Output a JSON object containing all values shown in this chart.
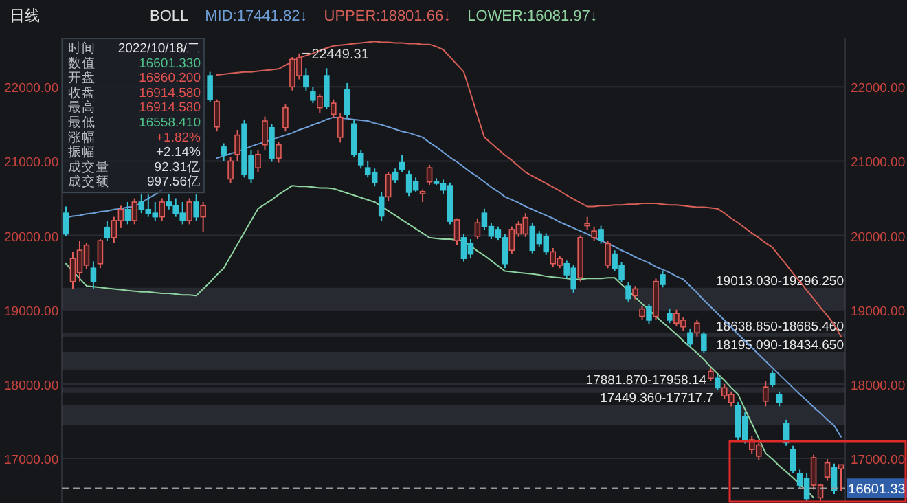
{
  "chart_data": {
    "type": "candlestick",
    "title": "日线",
    "legend_title": "BOLL",
    "legend": "top",
    "grid": "y",
    "categories": [
      null,
      null,
      null,
      null,
      null,
      null,
      null,
      null,
      null,
      null,
      null,
      null,
      null,
      null,
      null,
      null,
      null,
      null,
      null,
      null,
      null,
      null,
      null,
      null,
      null,
      null,
      null,
      null,
      null,
      null,
      null,
      null,
      null,
      null,
      null,
      null,
      null,
      null,
      null,
      null,
      null,
      null,
      null,
      null,
      null,
      null,
      null,
      null,
      null,
      null,
      null,
      null,
      null,
      null,
      null,
      null,
      null,
      null,
      null,
      null,
      null,
      null,
      null,
      null,
      null,
      null,
      null,
      null,
      null,
      null,
      null,
      null,
      null,
      null,
      null,
      null,
      null,
      null,
      null,
      null,
      null,
      null,
      null,
      null,
      null,
      null,
      null,
      null,
      null,
      null,
      null,
      null,
      null,
      null,
      null,
      null,
      null,
      null,
      null,
      null,
      null,
      null,
      null,
      null,
      null,
      null,
      null,
      null,
      null,
      null,
      null,
      null,
      null,
      null
    ],
    "ohlc": [
      [
        20300,
        20390,
        19990,
        20020
      ],
      [
        19380,
        19780,
        19280,
        19690
      ],
      [
        19500,
        19930,
        19380,
        19800
      ],
      [
        19600,
        19900,
        19550,
        19870
      ],
      [
        19560,
        19650,
        19280,
        19380
      ],
      [
        19620,
        19950,
        19560,
        19930
      ],
      [
        20110,
        20200,
        19930,
        19970
      ],
      [
        19970,
        20250,
        19900,
        20200
      ],
      [
        20200,
        20400,
        20100,
        20350
      ],
      [
        20350,
        20450,
        20150,
        20200
      ],
      [
        20200,
        20500,
        20150,
        20450
      ],
      [
        20450,
        20560,
        20300,
        20350
      ],
      [
        20350,
        20550,
        20250,
        20300
      ],
      [
        20300,
        20450,
        20200,
        20250
      ],
      [
        20250,
        20500,
        20200,
        20450
      ],
      [
        20450,
        20560,
        20350,
        20400
      ],
      [
        20400,
        20500,
        20250,
        20300
      ],
      [
        20300,
        20450,
        20150,
        20200
      ],
      [
        20200,
        20500,
        20150,
        20450
      ],
      [
        20450,
        20550,
        20200,
        20250
      ],
      [
        20250,
        20450,
        20050,
        20400
      ],
      [
        22150,
        22200,
        21800,
        21830
      ],
      [
        21460,
        21830,
        21400,
        21800
      ],
      [
        21190,
        21240,
        21000,
        21080
      ],
      [
        20760,
        21050,
        20700,
        21000
      ],
      [
        21090,
        21420,
        21000,
        21350
      ],
      [
        21500,
        21560,
        20780,
        20820
      ],
      [
        21080,
        21150,
        20700,
        20760
      ],
      [
        20910,
        21150,
        20850,
        21090
      ],
      [
        21220,
        21600,
        21150,
        21540
      ],
      [
        21450,
        21500,
        20990,
        21040
      ],
      [
        21040,
        21260,
        20980,
        21220
      ],
      [
        21450,
        21760,
        21400,
        21720
      ],
      [
        22000,
        22400,
        21950,
        22370
      ],
      [
        22150,
        22449.31,
        22100,
        22390
      ],
      [
        22150,
        22250,
        21950,
        22000
      ],
      [
        21930,
        22000,
        21780,
        21820
      ],
      [
        21720,
        21900,
        21650,
        21870
      ],
      [
        22150,
        22250,
        21700,
        21740
      ],
      [
        21630,
        21830,
        21580,
        21780
      ],
      [
        21320,
        21650,
        21250,
        21590
      ],
      [
        21960,
        22050,
        21580,
        21630
      ],
      [
        21500,
        21560,
        21050,
        21090
      ],
      [
        21100,
        21150,
        20900,
        20950
      ],
      [
        20910,
        21000,
        20780,
        20820
      ],
      [
        20850,
        20900,
        20660,
        20710
      ],
      [
        20520,
        20580,
        20200,
        20260
      ],
      [
        20520,
        20850,
        20460,
        20820
      ],
      [
        20850,
        20900,
        20700,
        20750
      ],
      [
        20980,
        21080,
        20850,
        20890
      ],
      [
        20820,
        20870,
        20530,
        20580
      ],
      [
        20720,
        20780,
        20580,
        20610
      ],
      [
        20560,
        20620,
        20450,
        20590
      ],
      [
        20720,
        20950,
        20680,
        20910
      ],
      [
        20720,
        20770,
        20680,
        20700
      ],
      [
        20700,
        20750,
        20560,
        20610
      ],
      [
        20670,
        20710,
        20150,
        20190
      ],
      [
        19930,
        20230,
        19870,
        20210
      ],
      [
        19970,
        20020,
        19650,
        19690
      ],
      [
        19890,
        19950,
        19700,
        19750
      ],
      [
        19990,
        20230,
        19950,
        20170
      ],
      [
        20300,
        20360,
        20070,
        20120
      ],
      [
        20120,
        20170,
        19950,
        19990
      ],
      [
        20080,
        20120,
        19940,
        19970
      ],
      [
        19970,
        20020,
        19560,
        19620
      ],
      [
        19800,
        20120,
        19750,
        20080
      ],
      [
        20020,
        20200,
        19980,
        20150
      ],
      [
        20020,
        20300,
        19980,
        20240
      ],
      [
        20120,
        20170,
        19760,
        19800
      ],
      [
        20020,
        20060,
        19850,
        19890
      ],
      [
        19990,
        20030,
        19740,
        19780
      ],
      [
        19620,
        19830,
        19580,
        19780
      ],
      [
        19600,
        19720,
        19560,
        19690
      ],
      [
        19620,
        19660,
        19420,
        19470
      ],
      [
        19560,
        19600,
        19230,
        19280
      ],
      [
        19430,
        20000,
        19380,
        19970
      ],
      [
        20130,
        20250,
        20080,
        20160
      ],
      [
        19970,
        20120,
        19930,
        20060
      ],
      [
        20080,
        20130,
        19890,
        19930
      ],
      [
        19600,
        19930,
        19560,
        19890
      ],
      [
        19750,
        19800,
        19520,
        19560
      ],
      [
        19600,
        19640,
        19370,
        19410
      ],
      [
        19320,
        19370,
        19110,
        19150
      ],
      [
        19190,
        19320,
        19140,
        19280
      ],
      [
        18910,
        19050,
        18870,
        19010
      ],
      [
        19040,
        19080,
        18810,
        18860
      ],
      [
        18910,
        19420,
        18860,
        19380
      ],
      [
        19470,
        19520,
        19300,
        19340
      ],
      [
        18950,
        19010,
        18820,
        18860
      ],
      [
        18820,
        19000,
        18780,
        18950
      ],
      [
        18770,
        18900,
        18720,
        18860
      ],
      [
        18690,
        18740,
        18500,
        18540
      ],
      [
        18690,
        18870,
        18640,
        18820
      ],
      [
        18670,
        18700,
        18420,
        18450
      ],
      [
        18080,
        18220,
        18040,
        18170
      ],
      [
        18080,
        18130,
        17920,
        17950
      ],
      [
        17840,
        18000,
        17800,
        17950
      ],
      [
        17750,
        17900,
        17700,
        17860
      ],
      [
        17710,
        17760,
        17240,
        17290
      ],
      [
        17560,
        17620,
        17200,
        17250
      ],
      [
        17120,
        17300,
        17060,
        17250
      ],
      [
        17030,
        17210,
        16980,
        17180
      ],
      [
        17770,
        18040,
        17700,
        17960
      ],
      [
        18140,
        18180,
        17960,
        17990
      ],
      [
        17860,
        17900,
        17700,
        17750
      ],
      [
        17470,
        17520,
        17170,
        17210
      ],
      [
        17120,
        17170,
        16800,
        16840
      ],
      [
        16790,
        16850,
        16600,
        16640
      ],
      [
        16730,
        16800,
        16420,
        16460
      ],
      [
        16640,
        17050,
        16580,
        17010
      ],
      [
        16470,
        16660,
        16430,
        16640
      ],
      [
        16750,
        16990,
        16700,
        16940
      ],
      [
        16880,
        16930,
        16520,
        16570
      ],
      [
        16860.2,
        16914.58,
        16558.41,
        16914.58
      ]
    ],
    "series": [
      {
        "name": "MID:17441.82↓",
        "type": "line",
        "color": "#6f9fd8",
        "values": [
          20240,
          20260,
          20270,
          20290,
          20300,
          20320,
          20330,
          20350,
          20360,
          20380,
          20390,
          20440,
          20500,
          20550,
          20610,
          null,
          null,
          null,
          null,
          null,
          null,
          null,
          21040,
          21070,
          21100,
          21130,
          21160,
          21200,
          21230,
          21260,
          21290,
          21320,
          21350,
          21380,
          21420,
          21450,
          21490,
          21520,
          21560,
          21590,
          21580,
          21570,
          21560,
          21550,
          21540,
          21510,
          21490,
          21460,
          21430,
          21400,
          21380,
          21350,
          21320,
          21250,
          21190,
          21120,
          21050,
          20990,
          20920,
          20850,
          20790,
          20720,
          20650,
          20590,
          20520,
          20480,
          20440,
          20390,
          20350,
          20310,
          20270,
          20230,
          20180,
          20140,
          20100,
          20060,
          20020,
          19970,
          19930,
          19890,
          19850,
          19800,
          19760,
          19710,
          19670,
          19630,
          19580,
          19540,
          19500,
          19450,
          19410,
          19320,
          19230,
          19130,
          19040,
          18950,
          18860,
          18760,
          18670,
          18580,
          18490,
          18400,
          18310,
          18220,
          18130,
          18040,
          17950,
          17860,
          17780,
          17690,
          17610,
          17520,
          17440,
          17290
        ]
      },
      {
        "name": "UPPER:18801.66↓",
        "type": "line",
        "color": "#d65f58",
        "values": [
          null,
          null,
          null,
          null,
          null,
          null,
          null,
          null,
          null,
          null,
          null,
          null,
          null,
          null,
          null,
          null,
          null,
          null,
          null,
          null,
          null,
          null,
          22160,
          22170,
          22180,
          22190,
          22200,
          22200,
          22210,
          22220,
          22230,
          22240,
          22290,
          22340,
          22390,
          22420,
          22450,
          22490,
          22520,
          22550,
          22560,
          22570,
          22580,
          22590,
          22600,
          22610,
          22600,
          22600,
          22590,
          22590,
          22580,
          22580,
          22570,
          22570,
          22540,
          22500,
          22400,
          22300,
          22200,
          21910,
          21610,
          21320,
          21240,
          21160,
          21080,
          21010,
          20930,
          20850,
          20800,
          20750,
          20700,
          20650,
          20600,
          20540,
          20490,
          20440,
          20390,
          20390,
          20400,
          20400,
          20410,
          20410,
          20420,
          20420,
          20430,
          20430,
          20430,
          20420,
          20410,
          20410,
          20400,
          20390,
          20380,
          20380,
          20370,
          20360,
          20300,
          20230,
          20170,
          20100,
          20030,
          19970,
          19900,
          19840,
          19720,
          19610,
          19490,
          19380,
          19260,
          19150,
          19030,
          18920,
          18800,
          18640
        ]
      },
      {
        "name": "LOWER:16081.97↓",
        "type": "line",
        "color": "#8fd3a0",
        "values": [
          19620,
          19520,
          19420,
          19320,
          19310,
          19300,
          19290,
          19280,
          19270,
          19260,
          19250,
          19240,
          19240,
          19230,
          19220,
          19220,
          19210,
          19200,
          19200,
          19190,
          19280,
          19370,
          19470,
          19560,
          19720,
          19880,
          20040,
          20200,
          20360,
          20420,
          20480,
          20550,
          20610,
          20670,
          20660,
          20660,
          20650,
          20640,
          20640,
          20630,
          20600,
          20570,
          20540,
          20510,
          20480,
          20450,
          20390,
          20330,
          20270,
          20210,
          20150,
          20090,
          20030,
          19970,
          19960,
          19950,
          19950,
          19940,
          19930,
          19860,
          19790,
          19730,
          19660,
          19590,
          19520,
          19510,
          19500,
          19490,
          19480,
          19470,
          19450,
          19440,
          19430,
          19420,
          19410,
          19410,
          19420,
          19420,
          19420,
          19430,
          19430,
          19340,
          19260,
          19170,
          19080,
          19000,
          18910,
          18830,
          18750,
          18670,
          18580,
          18500,
          18420,
          18330,
          18230,
          18140,
          18050,
          17950,
          17860,
          17660,
          17470,
          17270,
          17070,
          16990,
          16900,
          16820,
          16740,
          16650,
          16570,
          16470,
          null,
          null,
          null,
          null
        ]
      }
    ],
    "ylim": [
      16400,
      22650
    ],
    "yticks": [
      {
        "value": 17000,
        "label": "17000.00"
      },
      {
        "value": 18000,
        "label": "18000.00"
      },
      {
        "value": 19000,
        "label": "19000.00"
      },
      {
        "value": 20000,
        "label": "20000.00"
      },
      {
        "value": 21000,
        "label": "21000.00"
      },
      {
        "value": 22000,
        "label": "22000.00"
      }
    ],
    "y2lim": [
      16400,
      22650
    ],
    "y2ticks": [
      {
        "value": 17000,
        "label": "17000.00"
      },
      {
        "value": 18000,
        "label": "18000.00"
      },
      {
        "value": 19000,
        "label": "19000.00"
      },
      {
        "value": 20000,
        "label": "20000.00"
      },
      {
        "value": 21000,
        "label": "21000.00"
      },
      {
        "value": 22000,
        "label": "22000.00"
      }
    ],
    "ref_lines": [
      {
        "axis": "y",
        "value": 16601.33,
        "label": "16601.33",
        "line_style": "dashed",
        "color": "#9a9a9a"
      }
    ],
    "bands": [
      {
        "axis": "y",
        "from": 19013.03,
        "to": 19296.25,
        "label": "19013.030-19296.250",
        "color": "#5a5f6a"
      },
      {
        "axis": "y",
        "from": 18638.85,
        "to": 18685.46,
        "label": "18638.850-18685.460",
        "color": "#5a5f6a"
      },
      {
        "axis": "y",
        "from": 18195.09,
        "to": 18434.65,
        "label": "18195.090-18434.650",
        "color": "#5a5f6a"
      },
      {
        "axis": "y",
        "from": 17881.87,
        "to": 17958.14,
        "label": "17881.870-17958.14",
        "color": "#5a5f6a"
      },
      {
        "axis": "y",
        "from": 17449.36,
        "to": 17717.7,
        "label": "17449.360-17717.7",
        "color": "#5a5f6a"
      }
    ],
    "annotations": [
      "时间",
      "2022/10/18/二",
      "数值",
      "16601.330",
      "开盘",
      "16860.200",
      "收盘",
      "16914.580",
      "最高",
      "16914.580",
      "最低",
      "16558.410",
      "涨幅",
      "+1.82%",
      "振幅",
      "+2.14%",
      "成交量",
      "92.31亿",
      "成交额",
      "997.56亿",
      "22449.31"
    ]
  }
}
